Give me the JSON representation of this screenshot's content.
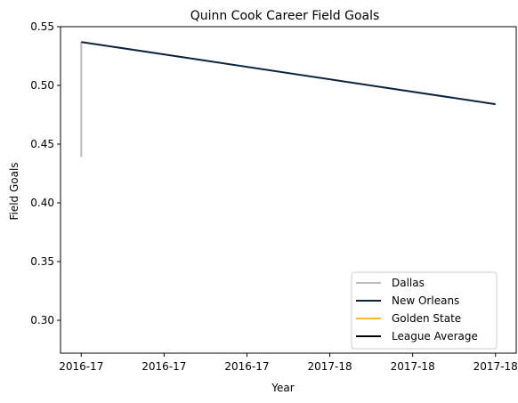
{
  "chart_data": {
    "type": "line",
    "title": "Quinn Cook Career Field Goals",
    "xlabel": "Year",
    "ylabel": "Field Goals",
    "x_ticks": [
      "2016-17",
      "2016-17",
      "2016-17",
      "2017-18",
      "2017-18",
      "2017-18"
    ],
    "y_ticks": [
      "0.30",
      "0.35",
      "0.40",
      "0.45",
      "0.50",
      "0.55"
    ],
    "xlim": [
      -0.125,
      2.625
    ],
    "ylim": [
      0.272,
      0.55
    ],
    "grid": false,
    "legend_position": "lower-right",
    "series": [
      {
        "name": "Dallas",
        "color": "#bbbbbb",
        "points": [
          [
            0,
            0.439
          ],
          [
            0,
            0.537
          ]
        ]
      },
      {
        "name": "New Orleans",
        "color": "#0c2340",
        "points": [
          [
            0,
            0.537
          ],
          [
            2.5,
            0.484
          ]
        ]
      },
      {
        "name": "Golden State",
        "color": "#fdb927",
        "points": []
      },
      {
        "name": "League Average",
        "color": "#000000",
        "points": []
      }
    ]
  }
}
